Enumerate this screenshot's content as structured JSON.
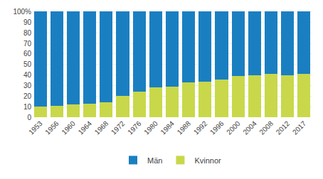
{
  "chart_data": {
    "type": "bar",
    "stacked": true,
    "categories": [
      "1953",
      "1956",
      "1960",
      "1964",
      "1968",
      "1972",
      "1976",
      "1980",
      "1984",
      "1988",
      "1992",
      "1996",
      "2000",
      "2004",
      "2008",
      "2012",
      "2017"
    ],
    "series": [
      {
        "name": "Kvinnor",
        "color": "#c8d84a",
        "values": [
          10,
          11,
          12,
          13,
          14,
          20,
          24,
          28,
          29,
          33,
          34,
          36,
          39,
          40,
          41,
          40,
          41
        ]
      },
      {
        "name": "Män",
        "color": "#1a7fc1",
        "values": [
          90,
          89,
          88,
          87,
          86,
          80,
          76,
          72,
          71,
          67,
          66,
          64,
          61,
          60,
          59,
          60,
          59
        ]
      }
    ],
    "ylim": [
      0,
      103
    ],
    "yticks": [
      0,
      10,
      20,
      30,
      40,
      50,
      60,
      70,
      80,
      90,
      {
        "value": 100,
        "label": "100%"
      }
    ],
    "grid": true,
    "legend": "bottom"
  }
}
